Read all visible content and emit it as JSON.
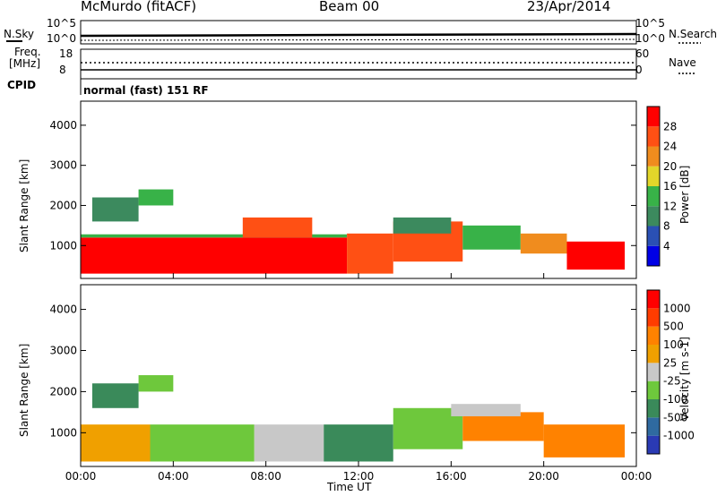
{
  "header": {
    "station": "McMurdo (fitACF)",
    "beam": "Beam 00",
    "date": "23/Apr/2014",
    "nsky_label": "N.Sky",
    "nsearch_label": "N.Search",
    "freq_label": "Freq.",
    "freq_unit": "[MHz]",
    "nave_label": "Nave",
    "cpid_label": "CPID",
    "cpid_text": "normal (fast) 151 RF",
    "ticks_left_top": [
      "10^5",
      "10^0"
    ],
    "ticks_right_top": [
      "10^5",
      "10^0"
    ],
    "ticks_freq": [
      "18",
      "8"
    ],
    "ticks_nave": [
      "60",
      "0"
    ]
  },
  "chart_data": [
    {
      "type": "heatmap",
      "title": "",
      "xlabel": "",
      "ylabel": "Slant Range [km]",
      "xlim": [
        0,
        24
      ],
      "ylim": [
        180,
        4600
      ],
      "xticks": [
        "00:00",
        "04:00",
        "08:00",
        "12:00",
        "16:00",
        "20:00",
        "00:00"
      ],
      "yticks": [
        "1000",
        "2000",
        "3000",
        "4000"
      ],
      "yvalues": [
        1000,
        2000,
        3000,
        4000
      ],
      "colorbar_label": "Power [dB]",
      "colorbar_ticks": [
        "28",
        "24",
        "20",
        "16",
        "12",
        "8",
        "4"
      ],
      "colorbar_values": [
        28,
        24,
        20,
        16,
        12,
        8,
        4
      ],
      "colorbar_range": [
        0,
        32
      ],
      "colorbar_colors": [
        "#0000e6",
        "#2a50b4",
        "#3c8a5e",
        "#38b248",
        "#e2d62a",
        "#f08c1e",
        "#ff5014",
        "#ff0000"
      ],
      "segments": [
        {
          "t0": 0.0,
          "t1": 11.5,
          "r0": 300,
          "r1": 1200,
          "v": 29
        },
        {
          "t0": 0.0,
          "t1": 11.5,
          "r0": 1200,
          "r1": 1280,
          "v": 14
        },
        {
          "t0": 11.5,
          "t1": 13.5,
          "r0": 300,
          "r1": 1300,
          "v": 27
        },
        {
          "t0": 13.5,
          "t1": 16.5,
          "r0": 600,
          "r1": 1600,
          "v": 24
        },
        {
          "t0": 16.5,
          "t1": 19.0,
          "r0": 900,
          "r1": 1500,
          "v": 12
        },
        {
          "t0": 19.0,
          "t1": 21.0,
          "r0": 800,
          "r1": 1300,
          "v": 20
        },
        {
          "t0": 21.0,
          "t1": 23.5,
          "r0": 400,
          "r1": 1100,
          "v": 29
        },
        {
          "t0": 2.5,
          "t1": 4.0,
          "r0": 2000,
          "r1": 2400,
          "v": 14
        },
        {
          "t0": 0.5,
          "t1": 2.5,
          "r0": 1600,
          "r1": 2200,
          "v": 8
        },
        {
          "t0": 7.0,
          "t1": 10.0,
          "r0": 1200,
          "r1": 1700,
          "v": 26
        },
        {
          "t0": 13.5,
          "t1": 16.0,
          "r0": 1300,
          "r1": 1700,
          "v": 10
        }
      ]
    },
    {
      "type": "heatmap",
      "title": "",
      "xlabel": "Time UT",
      "ylabel": "Slant Range [km]",
      "xlim": [
        0,
        24
      ],
      "ylim": [
        180,
        4600
      ],
      "xticks": [
        "00:00",
        "04:00",
        "08:00",
        "12:00",
        "16:00",
        "20:00",
        "00:00"
      ],
      "yticks": [
        "1000",
        "2000",
        "3000",
        "4000"
      ],
      "yvalues": [
        1000,
        2000,
        3000,
        4000
      ],
      "colorbar_label": "Velocity [m s-1]",
      "colorbar_ticks": [
        "1000",
        "500",
        "100",
        "25",
        "-25",
        "-100",
        "-500",
        "-1000"
      ],
      "colorbar_values": [
        1000,
        500,
        100,
        25,
        -25,
        -100,
        -500,
        -1000
      ],
      "colorbar_colors": [
        "#2a3ab4",
        "#2f6aa0",
        "#3a8a5a",
        "#6ec83c",
        "#c8c8c8",
        "#f0a000",
        "#ff8200",
        "#ff3c00",
        "#ff0000"
      ],
      "segments": [
        {
          "t0": 0.0,
          "t1": 3.0,
          "r0": 300,
          "r1": 1200,
          "cls": 5
        },
        {
          "t0": 3.0,
          "t1": 7.5,
          "r0": 300,
          "r1": 1200,
          "cls": 3
        },
        {
          "t0": 7.5,
          "t1": 10.5,
          "r0": 300,
          "r1": 1200,
          "cls": 4
        },
        {
          "t0": 10.5,
          "t1": 13.5,
          "r0": 300,
          "r1": 1200,
          "cls": 2
        },
        {
          "t0": 13.5,
          "t1": 16.5,
          "r0": 600,
          "r1": 1600,
          "cls": 3
        },
        {
          "t0": 16.5,
          "t1": 20.0,
          "r0": 800,
          "r1": 1500,
          "cls": 6
        },
        {
          "t0": 20.0,
          "t1": 23.5,
          "r0": 400,
          "r1": 1200,
          "cls": 6
        },
        {
          "t0": 2.5,
          "t1": 4.0,
          "r0": 2000,
          "r1": 2400,
          "cls": 3
        },
        {
          "t0": 0.5,
          "t1": 2.5,
          "r0": 1600,
          "r1": 2200,
          "cls": 2
        },
        {
          "t0": 16.0,
          "t1": 19.0,
          "r0": 1400,
          "r1": 1700,
          "cls": 4
        }
      ]
    }
  ]
}
